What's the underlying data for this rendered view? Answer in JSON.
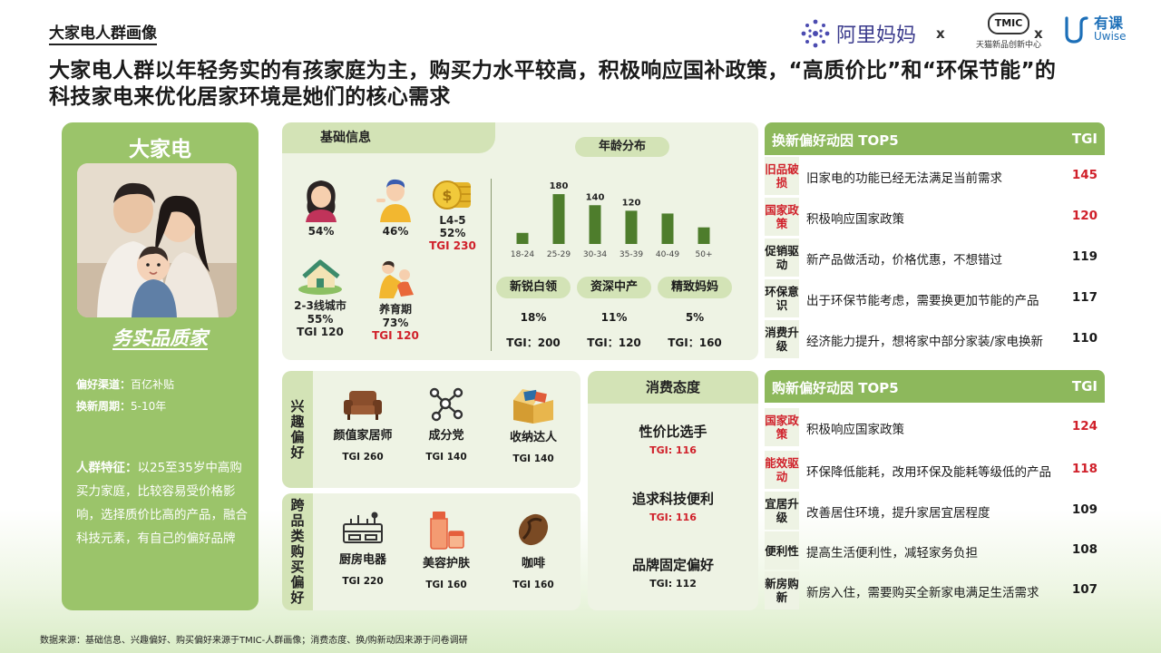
{
  "header": {
    "section_tag": "大家电人群画像",
    "headline": "大家电人群以年轻务实的有孩家庭为主，购买力水平较高，积极响应国补政策，“高质价比”和“环保节能”的科技家电来优化居家环境是她们的核心需求",
    "logos": {
      "ali": "阿里妈妈",
      "x": "x",
      "tmic": "TMIC",
      "tmic_sub": "天猫新品创新中心",
      "uwise_cn": "有课",
      "uwise_en": "Uwise"
    }
  },
  "persona": {
    "title": "大家电",
    "name": "务实品质家",
    "channel_label": "偏好渠道：",
    "channel": "百亿补贴",
    "cycle_label": "换新周期：",
    "cycle": "5-10年",
    "desc_label": "人群特征：",
    "desc": "以25至35岁中高购买力家庭，比较容易受价格影响，选择质价比高的产品，融合科技元素，有自己的偏好品牌"
  },
  "basic": {
    "title": "基础信息",
    "female": "54%",
    "male": "46%",
    "wealth_level": "L4-5",
    "wealth_pct": "52%",
    "wealth_tgi": "TGI 230",
    "city_label": "2-3线城市",
    "city_pct": "55%",
    "city_tgi": "TGI 120",
    "parenting_label": "养育期",
    "parenting_pct": "73%",
    "parenting_tgi": "TGI 120",
    "age_title": "年龄分布",
    "segments": [
      {
        "label": "新锐白领",
        "pct": "18%",
        "tgi": "TGI：200"
      },
      {
        "label": "资深中产",
        "pct": "11%",
        "tgi": "TGI：120"
      },
      {
        "label": "精致妈妈",
        "pct": "5%",
        "tgi": "TGI：160"
      }
    ]
  },
  "chart_data": {
    "type": "bar",
    "title": "年龄分布",
    "categories": [
      "18-24",
      "25-29",
      "30-34",
      "35-39",
      "40-49",
      "50+"
    ],
    "values": [
      40,
      180,
      140,
      120,
      110,
      60
    ],
    "data_labels": [
      "",
      "180",
      "140",
      "120",
      "",
      ""
    ],
    "colors": {
      "bar": "#4e7d2c"
    }
  },
  "interest": {
    "label": "兴趣偏好",
    "items": [
      {
        "icon": "sofa-icon",
        "name": "颜值家居师",
        "tgi": "TGI 260"
      },
      {
        "icon": "molecule-icon",
        "name": "成分党",
        "tgi": "TGI 140"
      },
      {
        "icon": "storage-box-icon",
        "name": "收纳达人",
        "tgi": "TGI 140"
      }
    ]
  },
  "cross": {
    "label": "跨品类购买偏好",
    "items": [
      {
        "icon": "kitchen-appliance-icon",
        "name": "厨房电器",
        "tgi": "TGI 220"
      },
      {
        "icon": "skincare-icon",
        "name": "美容护肤",
        "tgi": "TGI 160"
      },
      {
        "icon": "coffee-bean-icon",
        "name": "咖啡",
        "tgi": "TGI 160"
      }
    ]
  },
  "attitude": {
    "title": "消费态度",
    "items": [
      {
        "name": "性价比选手",
        "tgi": "TGI: 116"
      },
      {
        "name": "追求科技便利",
        "tgi": "TGI: 116"
      },
      {
        "name": "品牌固定偏好",
        "tgi": "TGI: 112"
      }
    ]
  },
  "renew": {
    "title": "换新偏好动因 TOP5",
    "tgi_label": "TGI",
    "rows": [
      {
        "tag": "旧品破损",
        "text": "旧家电的功能已经无法满足当前需求",
        "tgi": "145"
      },
      {
        "tag": "国家政策",
        "text": "积极响应国家政策",
        "tgi": "120"
      },
      {
        "tag": "促销驱动",
        "text": "新产品做活动，价格优惠，不想错过",
        "tgi": "119"
      },
      {
        "tag": "环保意识",
        "text": "出于环保节能考虑，需要换更加节能的产品",
        "tgi": "117"
      },
      {
        "tag": "消费升级",
        "text": "经济能力提升，想将家中部分家装/家电换新",
        "tgi": "110"
      }
    ]
  },
  "newbuy": {
    "title": "购新偏好动因 TOP5",
    "tgi_label": "TGI",
    "rows": [
      {
        "tag": "国家政策",
        "text": "积极响应国家政策",
        "tgi": "124"
      },
      {
        "tag": "能效驱动",
        "text": "环保降低能耗，改用环保及能耗等级低的产品",
        "tgi": "118"
      },
      {
        "tag": "宜居升级",
        "text": "改善居住环境，提升家居宜居程度",
        "tgi": "109"
      },
      {
        "tag": "便利性",
        "text": "提高生活便利性，减轻家务负担",
        "tgi": "108"
      },
      {
        "tag": "新房购新",
        "text": "新房入住，需要购买全新家电满足生活需求",
        "tgi": "107"
      }
    ]
  },
  "source": "数据来源：基础信息、兴趣偏好、购买偏好来源于TMIC-人群画像；消费态度、换/购新动因来源于问卷调研"
}
